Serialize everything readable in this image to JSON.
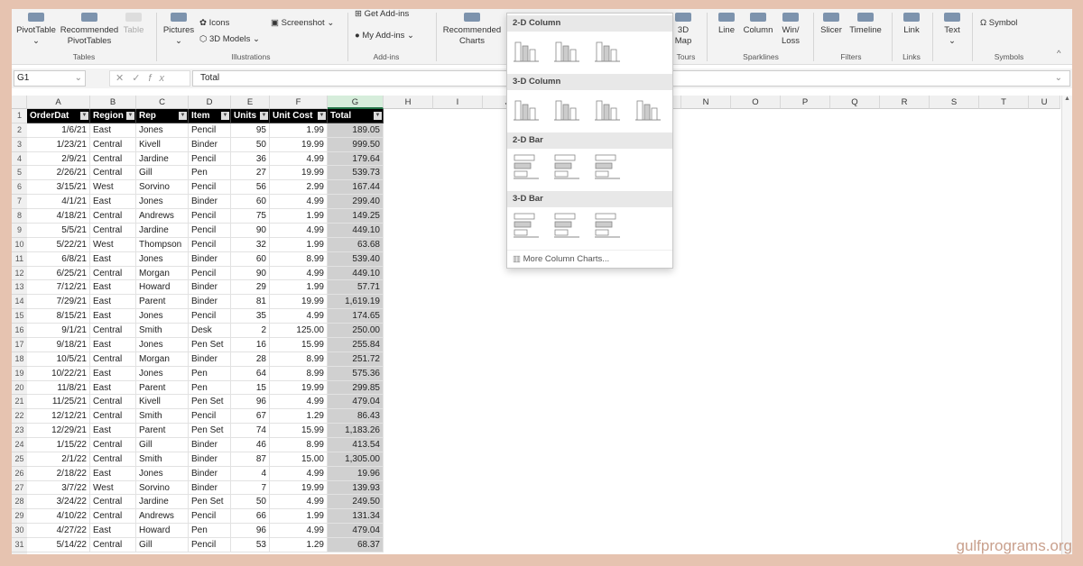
{
  "ribbon": {
    "tables": {
      "pivot": "PivotTable",
      "recpivot": "Recommended PivotTables",
      "table": "Table",
      "label": "Tables"
    },
    "illustrations": {
      "pictures": "Pictures",
      "icons": "Icons",
      "models": "3D Models",
      "screenshot": "Screenshot",
      "label": "Illustrations"
    },
    "addins": {
      "get": "Get Add-ins",
      "my": "My Add-ins",
      "label": "Add-ins"
    },
    "charts": {
      "recommended": "Recommended Charts"
    },
    "tours": {
      "map": "3D Map",
      "label": "Tours"
    },
    "sparklines": {
      "line": "Line",
      "column": "Column",
      "winloss": "Win/ Loss",
      "label": "Sparklines"
    },
    "filters": {
      "slicer": "Slicer",
      "timeline": "Timeline",
      "label": "Filters"
    },
    "links": {
      "link": "Link",
      "label": "Links"
    },
    "text": {
      "text": "Text"
    },
    "symbols": {
      "symbol": "Ω Symbol",
      "label": "Symbols"
    }
  },
  "formula_bar": {
    "name_box": "G1",
    "formula": "Total"
  },
  "columns": [
    "A",
    "B",
    "C",
    "D",
    "E",
    "F",
    "G",
    "H",
    "I",
    "J",
    "K",
    "L",
    "M",
    "N",
    "O",
    "P",
    "Q",
    "R",
    "S",
    "T",
    "U"
  ],
  "table": {
    "headers": [
      "OrderDat",
      "Region",
      "Rep",
      "Item",
      "Units",
      "Unit Cost",
      "Total"
    ],
    "rows": [
      [
        "1/6/21",
        "East",
        "Jones",
        "Pencil",
        "95",
        "1.99",
        "189.05"
      ],
      [
        "1/23/21",
        "Central",
        "Kivell",
        "Binder",
        "50",
        "19.99",
        "999.50"
      ],
      [
        "2/9/21",
        "Central",
        "Jardine",
        "Pencil",
        "36",
        "4.99",
        "179.64"
      ],
      [
        "2/26/21",
        "Central",
        "Gill",
        "Pen",
        "27",
        "19.99",
        "539.73"
      ],
      [
        "3/15/21",
        "West",
        "Sorvino",
        "Pencil",
        "56",
        "2.99",
        "167.44"
      ],
      [
        "4/1/21",
        "East",
        "Jones",
        "Binder",
        "60",
        "4.99",
        "299.40"
      ],
      [
        "4/18/21",
        "Central",
        "Andrews",
        "Pencil",
        "75",
        "1.99",
        "149.25"
      ],
      [
        "5/5/21",
        "Central",
        "Jardine",
        "Pencil",
        "90",
        "4.99",
        "449.10"
      ],
      [
        "5/22/21",
        "West",
        "Thompson",
        "Pencil",
        "32",
        "1.99",
        "63.68"
      ],
      [
        "6/8/21",
        "East",
        "Jones",
        "Binder",
        "60",
        "8.99",
        "539.40"
      ],
      [
        "6/25/21",
        "Central",
        "Morgan",
        "Pencil",
        "90",
        "4.99",
        "449.10"
      ],
      [
        "7/12/21",
        "East",
        "Howard",
        "Binder",
        "29",
        "1.99",
        "57.71"
      ],
      [
        "7/29/21",
        "East",
        "Parent",
        "Binder",
        "81",
        "19.99",
        "1,619.19"
      ],
      [
        "8/15/21",
        "East",
        "Jones",
        "Pencil",
        "35",
        "4.99",
        "174.65"
      ],
      [
        "9/1/21",
        "Central",
        "Smith",
        "Desk",
        "2",
        "125.00",
        "250.00"
      ],
      [
        "9/18/21",
        "East",
        "Jones",
        "Pen Set",
        "16",
        "15.99",
        "255.84"
      ],
      [
        "10/5/21",
        "Central",
        "Morgan",
        "Binder",
        "28",
        "8.99",
        "251.72"
      ],
      [
        "10/22/21",
        "East",
        "Jones",
        "Pen",
        "64",
        "8.99",
        "575.36"
      ],
      [
        "11/8/21",
        "East",
        "Parent",
        "Pen",
        "15",
        "19.99",
        "299.85"
      ],
      [
        "11/25/21",
        "Central",
        "Kivell",
        "Pen Set",
        "96",
        "4.99",
        "479.04"
      ],
      [
        "12/12/21",
        "Central",
        "Smith",
        "Pencil",
        "67",
        "1.29",
        "86.43"
      ],
      [
        "12/29/21",
        "East",
        "Parent",
        "Pen Set",
        "74",
        "15.99",
        "1,183.26"
      ],
      [
        "1/15/22",
        "Central",
        "Gill",
        "Binder",
        "46",
        "8.99",
        "413.54"
      ],
      [
        "2/1/22",
        "Central",
        "Smith",
        "Binder",
        "87",
        "15.00",
        "1,305.00"
      ],
      [
        "2/18/22",
        "East",
        "Jones",
        "Binder",
        "4",
        "4.99",
        "19.96"
      ],
      [
        "3/7/22",
        "West",
        "Sorvino",
        "Binder",
        "7",
        "19.99",
        "139.93"
      ],
      [
        "3/24/22",
        "Central",
        "Jardine",
        "Pen Set",
        "50",
        "4.99",
        "249.50"
      ],
      [
        "4/10/22",
        "Central",
        "Andrews",
        "Pencil",
        "66",
        "1.99",
        "131.34"
      ],
      [
        "4/27/22",
        "East",
        "Howard",
        "Pen",
        "96",
        "4.99",
        "479.04"
      ],
      [
        "5/14/22",
        "Central",
        "Gill",
        "Pencil",
        "53",
        "1.29",
        "68.37"
      ]
    ]
  },
  "chart_menu": {
    "sections": [
      "2-D Column",
      "3-D Column",
      "2-D Bar",
      "3-D Bar"
    ],
    "more": "More Column Charts..."
  },
  "watermark": "gulfprograms.org"
}
